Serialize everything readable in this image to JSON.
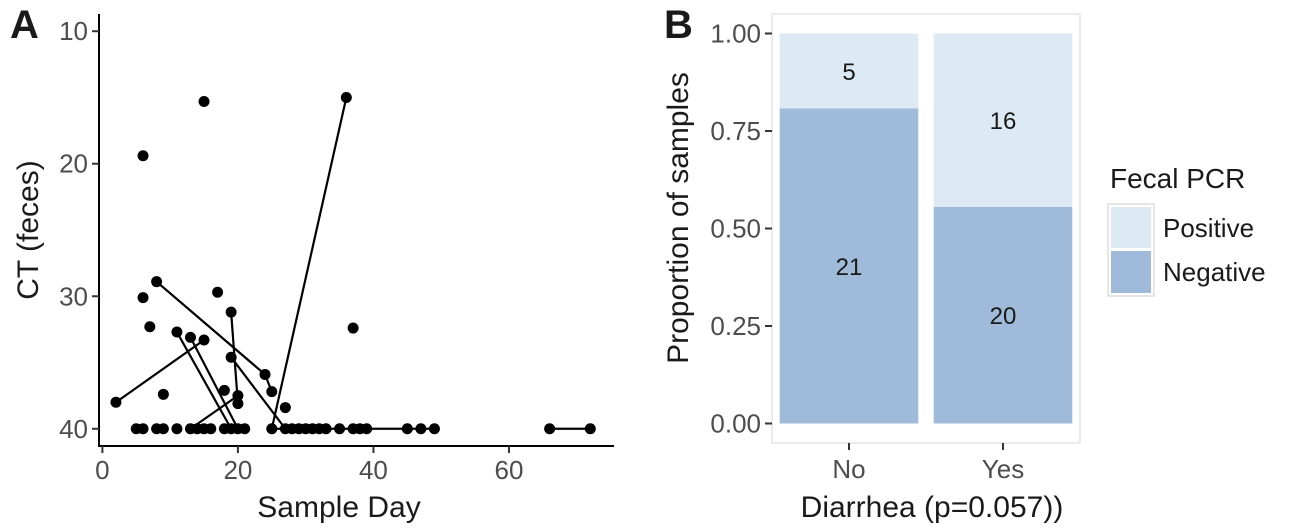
{
  "chart_data": [
    {
      "panel": "A",
      "type": "scatter",
      "xlabel": "Sample Day",
      "ylabel": "CT (feces)",
      "xlim": [
        -0.5,
        75.5
      ],
      "ylim": [
        41.3,
        8.7
      ],
      "y_reversed": true,
      "x_ticks": [
        0,
        20,
        40,
        60
      ],
      "y_ticks": [
        10,
        20,
        30,
        40
      ],
      "grid": false,
      "points": [
        {
          "x": 2,
          "y": 38.0
        },
        {
          "x": 6,
          "y": 19.4
        },
        {
          "x": 6,
          "y": 30.1
        },
        {
          "x": 7,
          "y": 32.3
        },
        {
          "x": 8,
          "y": 28.9
        },
        {
          "x": 9,
          "y": 37.4
        },
        {
          "x": 11,
          "y": 32.7
        },
        {
          "x": 13,
          "y": 33.1
        },
        {
          "x": 15,
          "y": 15.3
        },
        {
          "x": 15,
          "y": 33.3
        },
        {
          "x": 17,
          "y": 29.7
        },
        {
          "x": 18,
          "y": 37.1
        },
        {
          "x": 19,
          "y": 31.2
        },
        {
          "x": 19,
          "y": 34.6
        },
        {
          "x": 20,
          "y": 37.5
        },
        {
          "x": 20,
          "y": 38.1
        },
        {
          "x": 24,
          "y": 35.9
        },
        {
          "x": 25,
          "y": 37.2
        },
        {
          "x": 27,
          "y": 38.4
        },
        {
          "x": 36,
          "y": 15.0
        },
        {
          "x": 37,
          "y": 32.4
        },
        {
          "x": 5,
          "y": 40
        },
        {
          "x": 6,
          "y": 40
        },
        {
          "x": 8,
          "y": 40
        },
        {
          "x": 9,
          "y": 40
        },
        {
          "x": 11,
          "y": 40
        },
        {
          "x": 13,
          "y": 40
        },
        {
          "x": 14,
          "y": 40
        },
        {
          "x": 15,
          "y": 40
        },
        {
          "x": 16,
          "y": 40
        },
        {
          "x": 18,
          "y": 40
        },
        {
          "x": 19,
          "y": 40
        },
        {
          "x": 20,
          "y": 40
        },
        {
          "x": 21,
          "y": 40
        },
        {
          "x": 25,
          "y": 40
        },
        {
          "x": 27,
          "y": 40
        },
        {
          "x": 28,
          "y": 40
        },
        {
          "x": 29,
          "y": 40
        },
        {
          "x": 30,
          "y": 40
        },
        {
          "x": 31,
          "y": 40
        },
        {
          "x": 32,
          "y": 40
        },
        {
          "x": 33,
          "y": 40
        },
        {
          "x": 35,
          "y": 40
        },
        {
          "x": 37,
          "y": 40
        },
        {
          "x": 38,
          "y": 40
        },
        {
          "x": 39,
          "y": 40
        },
        {
          "x": 45,
          "y": 40
        },
        {
          "x": 47,
          "y": 40
        },
        {
          "x": 49,
          "y": 40
        },
        {
          "x": 66,
          "y": 40
        },
        {
          "x": 72,
          "y": 40
        }
      ],
      "segments": [
        [
          [
            2,
            38.0
          ],
          [
            15,
            33.3
          ]
        ],
        [
          [
            8,
            28.9
          ],
          [
            24,
            35.9
          ]
        ],
        [
          [
            11,
            32.7
          ],
          [
            19,
            40
          ]
        ],
        [
          [
            13,
            33.1
          ],
          [
            20,
            40
          ]
        ],
        [
          [
            13,
            40
          ],
          [
            20,
            37.5
          ]
        ],
        [
          [
            19,
            31.2
          ],
          [
            20,
            38.1
          ]
        ],
        [
          [
            19,
            34.6
          ],
          [
            27,
            40
          ]
        ],
        [
          [
            24,
            35.9
          ],
          [
            25,
            37.2
          ]
        ],
        [
          [
            25,
            40
          ],
          [
            36,
            15.0
          ]
        ],
        [
          [
            25,
            40
          ],
          [
            49,
            40
          ]
        ],
        [
          [
            66,
            40
          ],
          [
            72,
            40
          ]
        ]
      ]
    },
    {
      "panel": "B",
      "type": "bar",
      "stacked": true,
      "xlabel": "Diarrhea (p=0.057))",
      "ylabel": "Proportion of samples",
      "ylim": [
        -0.05,
        1.05
      ],
      "y_ticks": [
        "0.00",
        "0.25",
        "0.50",
        "0.75",
        "1.00"
      ],
      "categories": [
        "No",
        "Yes"
      ],
      "series": [
        {
          "name": "Negative",
          "color": "#a0bbd9",
          "counts": [
            21,
            20
          ],
          "values": [
            0.8077,
            0.5556
          ]
        },
        {
          "name": "Positive",
          "color": "#ddeaf4",
          "counts": [
            5,
            16
          ],
          "values": [
            0.1923,
            0.4444
          ]
        }
      ],
      "legend": {
        "title": "Fecal PCR",
        "placement": "right",
        "entries": [
          {
            "label": "Positive",
            "color": "#ddeaf4"
          },
          {
            "label": "Negative",
            "color": "#a0bbd9"
          }
        ]
      },
      "grid": false
    }
  ]
}
